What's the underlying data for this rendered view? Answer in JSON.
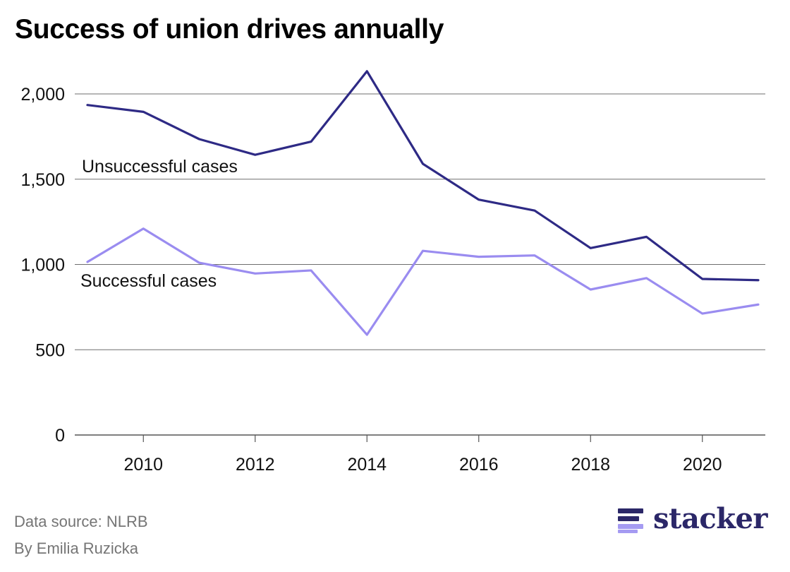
{
  "chart_data": {
    "type": "line",
    "title": "Success of union drives annually",
    "xlabel": "",
    "ylabel": "",
    "x": [
      2009,
      2010,
      2011,
      2012,
      2013,
      2014,
      2015,
      2016,
      2017,
      2018,
      2019,
      2020,
      2021
    ],
    "x_ticks": [
      2010,
      2012,
      2014,
      2016,
      2018,
      2020
    ],
    "x_tick_labels": [
      "2010",
      "2012",
      "2014",
      "2016",
      "2018",
      "2020"
    ],
    "y_ticks": [
      0,
      500,
      1000,
      1500,
      2000
    ],
    "y_tick_labels": [
      "0",
      "500",
      "1,000",
      "1,500",
      "2,000"
    ],
    "xlim": [
      2009,
      2021
    ],
    "ylim": [
      0,
      2150
    ],
    "grid": true,
    "series": [
      {
        "name": "Unsuccessful cases",
        "color": "#2e2a85",
        "values": [
          1935,
          1895,
          1735,
          1643,
          1720,
          2133,
          1590,
          1380,
          1316,
          1096,
          1162,
          915,
          908
        ]
      },
      {
        "name": "Successful cases",
        "color": "#9a8cf0",
        "values": [
          1015,
          1210,
          1010,
          947,
          965,
          588,
          1080,
          1045,
          1053,
          853,
          920,
          712,
          765
        ]
      }
    ]
  },
  "footer": {
    "source": "Data source: NLRB",
    "byline": "By Emilia Ruzicka"
  },
  "logo": {
    "text": "stacker",
    "color_dark": "#2b2768",
    "color_light": "#a59bf2"
  }
}
